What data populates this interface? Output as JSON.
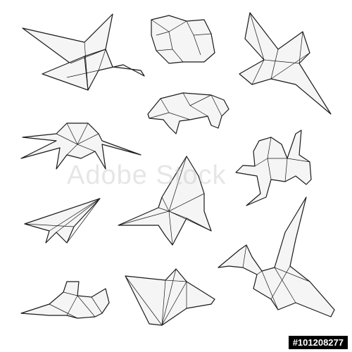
{
  "watermark": {
    "text": "Adobe Stock"
  },
  "stock_id": {
    "text": "#101208277"
  },
  "figures": [
    {
      "name": "origami-crane-top-left"
    },
    {
      "name": "origami-cube-box"
    },
    {
      "name": "origami-bird-top-right"
    },
    {
      "name": "origami-pig"
    },
    {
      "name": "origami-spider"
    },
    {
      "name": "origami-frog"
    },
    {
      "name": "origami-paper-plane"
    },
    {
      "name": "origami-butterfly"
    },
    {
      "name": "origami-crane-bottom-right"
    },
    {
      "name": "origami-small-bird"
    },
    {
      "name": "origami-boat"
    }
  ],
  "colors": {
    "stroke": "#1a1a1a",
    "fill": "#f5f5f5",
    "background": "#ffffff"
  }
}
